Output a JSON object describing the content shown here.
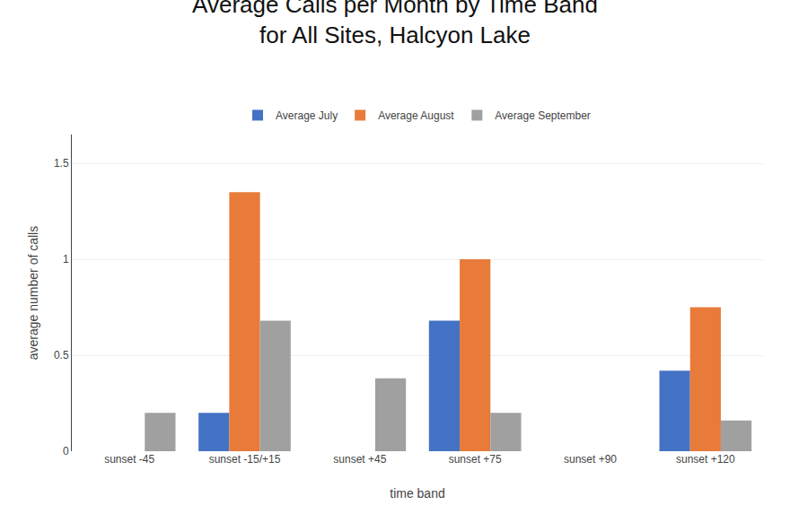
{
  "chart_data": {
    "type": "bar",
    "title": "Average Calls per Month by Time Band",
    "subtitle": "for All Sites, Halcyon Lake",
    "x_label": "time band",
    "y_label": "average number of calls",
    "categories": [
      "sunset -45",
      "sunset -15/+15",
      "sunset +45",
      "sunset +75",
      "sunset +90",
      "sunset +120"
    ],
    "series": [
      {
        "name": "Average July",
        "color": "#4472C4",
        "values": [
          0,
          0.2,
          0,
          0.68,
          0,
          0.42
        ]
      },
      {
        "name": "Average August",
        "color": "#E87B3A",
        "values": [
          0,
          1.35,
          0,
          1.0,
          0,
          0.75
        ]
      },
      {
        "name": "Average September",
        "color": "#A0A0A0",
        "values": [
          0.2,
          0.68,
          0.38,
          0.2,
          0,
          0.16
        ]
      }
    ],
    "ylim": [
      0,
      1.65
    ],
    "yticks": [
      0,
      0.5,
      1,
      1.5
    ],
    "grid": true,
    "legend": "top"
  }
}
